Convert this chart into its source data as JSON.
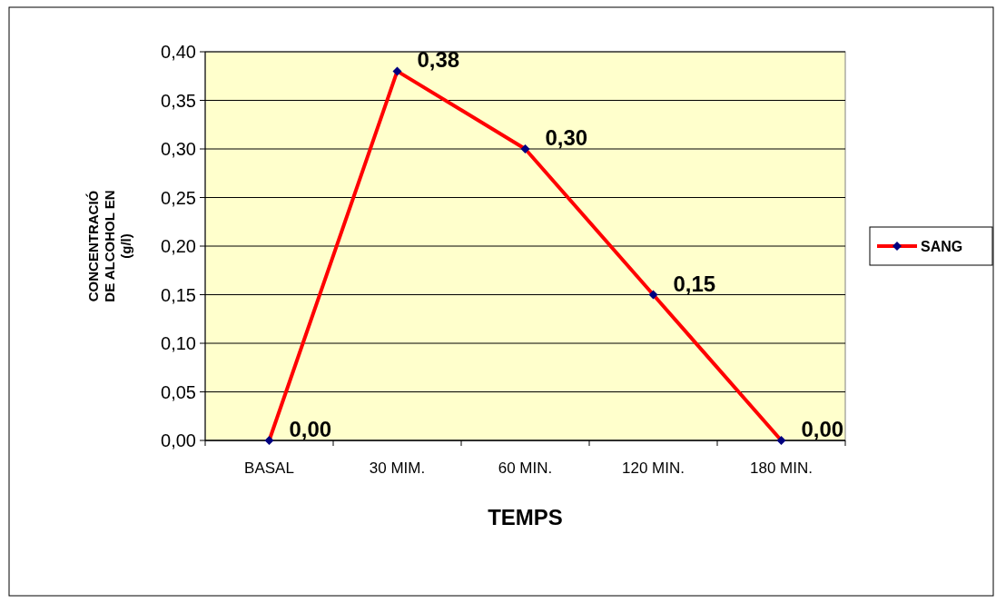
{
  "chart_data": {
    "type": "line",
    "xlabel": "TEMPS",
    "ylabel": "CONCENTRACIÓ DE ALCOHOL EN (g/l)",
    "categories": [
      "BASAL",
      "30 MIM.",
      "60 MIN.",
      "120 MIN.",
      "180 MIN."
    ],
    "series": [
      {
        "name": "SANG",
        "color": "#ff0000",
        "values": [
          0,
          0.38,
          0.3,
          0.15,
          0
        ],
        "value_labels": [
          "0,00",
          "0,38",
          "0,30",
          "0,15",
          "0,00"
        ]
      }
    ],
    "ylim": [
      0,
      0.4
    ],
    "yticks": [
      {
        "value": 0,
        "label": "0,00"
      },
      {
        "value": 0.05,
        "label": "0,05"
      },
      {
        "value": 0.1,
        "label": "0,10"
      },
      {
        "value": 0.15,
        "label": "0,15"
      },
      {
        "value": 0.2,
        "label": "0,20"
      },
      {
        "value": 0.25,
        "label": "0,25"
      },
      {
        "value": 0.3,
        "label": "0,30"
      },
      {
        "value": 0.35,
        "label": "0,35"
      },
      {
        "value": 0.4,
        "label": "0,40"
      }
    ],
    "grid": "y",
    "legend": "right",
    "marker": "diamond",
    "line_style": "solid"
  }
}
